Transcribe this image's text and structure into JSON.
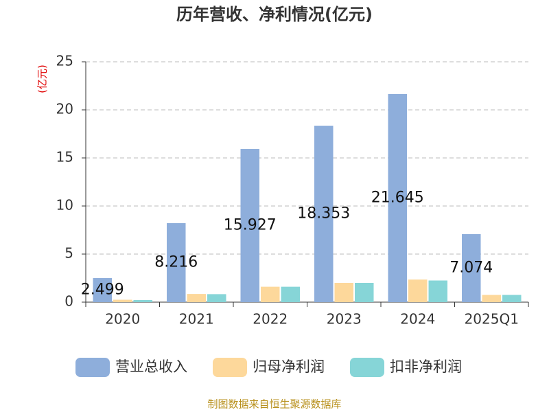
{
  "chart_data": {
    "type": "bar",
    "title": "历年营收、净利情况(亿元)",
    "y_label": "(亿元)",
    "categories": [
      "2020",
      "2021",
      "2022",
      "2023",
      "2024",
      "2025Q1"
    ],
    "series": [
      {
        "name": "营业总收入",
        "color": "#8eaedb",
        "values": [
          2.499,
          8.216,
          15.927,
          18.353,
          21.645,
          7.074
        ]
      },
      {
        "name": "归母净利润",
        "color": "#fdd89b",
        "values": [
          0.25,
          0.85,
          1.6,
          2.0,
          2.35,
          0.75
        ]
      },
      {
        "name": "扣非净利润",
        "color": "#86d5d7",
        "values": [
          0.22,
          0.83,
          1.6,
          2.0,
          2.25,
          0.75
        ]
      }
    ],
    "ylim": [
      0,
      25
    ],
    "yticks": [
      0,
      5,
      10,
      15,
      20,
      25
    ],
    "grid": true,
    "legend": "bottom",
    "source": "制图数据来自恒生聚源数据库"
  }
}
